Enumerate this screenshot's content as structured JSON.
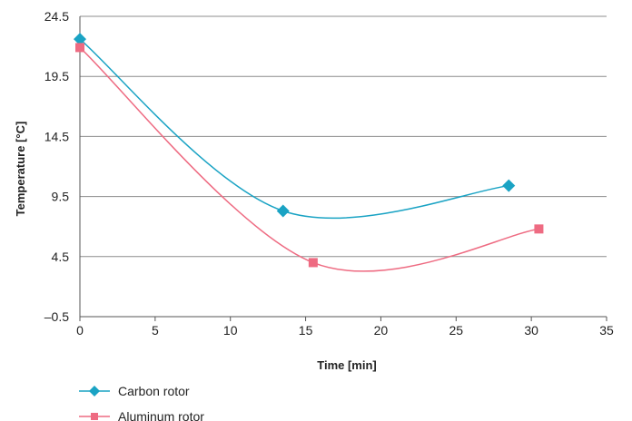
{
  "chart_data": {
    "type": "line",
    "xlabel": "Time [min]",
    "ylabel": "Temperature [°C]",
    "xlim": [
      0,
      35
    ],
    "ylim": [
      -0.5,
      24.5
    ],
    "xticks": [
      0,
      5,
      10,
      15,
      20,
      25,
      30,
      35
    ],
    "yticks": [
      -0.5,
      4.5,
      9.5,
      14.5,
      19.5,
      24.5
    ],
    "xtick_labels": [
      "0",
      "5",
      "10",
      "15",
      "20",
      "25",
      "30",
      "35"
    ],
    "ytick_labels": [
      "–0.5",
      "4.5",
      "9.5",
      "14.5",
      "19.5",
      "24.5"
    ],
    "grid": "horizontal",
    "legend_position": "bottom-left",
    "series": [
      {
        "name": "Carbon rotor",
        "color": "#1aa3c4",
        "marker": "diamond",
        "x": [
          0,
          13.5,
          28.5
        ],
        "y": [
          22.6,
          8.3,
          10.4
        ]
      },
      {
        "name": "Aluminum rotor",
        "color": "#ee6b82",
        "marker": "square",
        "x": [
          0,
          15.5,
          30.5
        ],
        "y": [
          21.9,
          4.0,
          6.8
        ]
      }
    ]
  }
}
